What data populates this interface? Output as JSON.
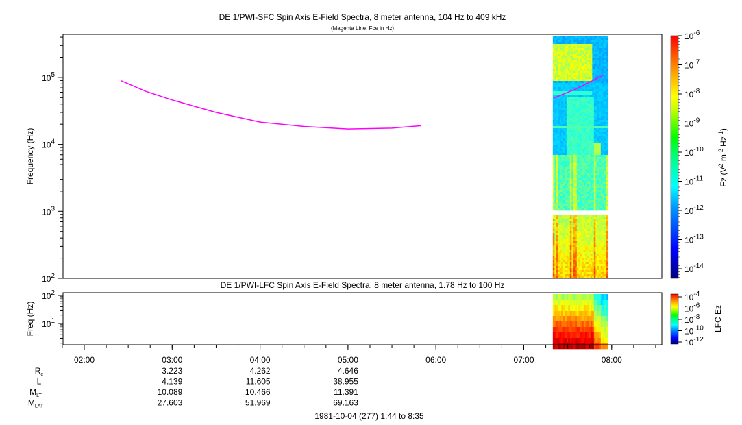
{
  "chart_data": [
    {
      "type": "heatmap",
      "title": "DE 1/PWI-SFC  Spin Axis E-Field Spectra, 8 meter antenna, 104 Hz to 409 kHz",
      "subtitle": "(Magenta Line: Fce in Hz)",
      "ylabel": "Frequency (Hz)",
      "yscale": "log",
      "ylim": [
        100,
        409000
      ],
      "yticks": [
        {
          "base": "10",
          "exp": "2"
        },
        {
          "base": "10",
          "exp": "3"
        },
        {
          "base": "10",
          "exp": "4"
        },
        {
          "base": "10",
          "exp": "5"
        }
      ],
      "xlim_hours": [
        1.733,
        8.583
      ],
      "data_coverage_hours": [
        7.33,
        7.95
      ],
      "data_gap_hz": [
        880,
        1050
      ],
      "fce_line": {
        "name": "Fce",
        "color": "#ff00ff",
        "segments": [
          [
            [
              2.42,
              89000
            ],
            [
              2.7,
              62000
            ],
            [
              3.0,
              46000
            ],
            [
              3.5,
              30000
            ],
            [
              4.0,
              21500
            ],
            [
              4.5,
              18500
            ],
            [
              5.0,
              17000
            ],
            [
              5.5,
              17500
            ],
            [
              5.83,
              19000
            ]
          ],
          [
            [
              7.34,
              49000
            ],
            [
              7.6,
              68000
            ],
            [
              7.9,
              107000
            ]
          ]
        ]
      },
      "colorbar": {
        "label_parts": [
          "Ez (V",
          "2",
          " m",
          "-2",
          " Hz",
          "-1",
          ")"
        ],
        "ticks": [
          {
            "base": "10",
            "exp": "-6"
          },
          {
            "base": "10",
            "exp": "-7"
          },
          {
            "base": "10",
            "exp": "-8"
          },
          {
            "base": "10",
            "exp": "-9"
          },
          {
            "base": "10",
            "exp": "-10"
          },
          {
            "base": "10",
            "exp": "-11"
          },
          {
            "base": "10",
            "exp": "-12"
          },
          {
            "base": "10",
            "exp": "-13"
          },
          {
            "base": "10",
            "exp": "-14"
          }
        ]
      }
    },
    {
      "type": "heatmap",
      "title": "DE 1/PWI-LFC  Spin Axis E-Field Spectra, 8 meter antenna, 1.78 Hz to 100 Hz",
      "ylabel": "Freq (Hz)",
      "yscale": "log",
      "ylim": [
        1.78,
        100
      ],
      "yticks": [
        {
          "base": "10",
          "exp": "1"
        },
        {
          "base": "10",
          "exp": "2"
        }
      ],
      "data_coverage_hours": [
        7.33,
        7.95
      ],
      "colorbar": {
        "label": "LFC Ez",
        "ticks": [
          {
            "base": "10",
            "exp": "-4"
          },
          {
            "base": "10",
            "exp": "-6"
          },
          {
            "base": "10",
            "exp": "-8"
          },
          {
            "base": "10",
            "exp": "-10"
          },
          {
            "base": "10",
            "exp": "-12"
          }
        ]
      }
    }
  ],
  "xaxis": {
    "ticks": [
      "02:00",
      "03:00",
      "04:00",
      "05:00",
      "06:00",
      "07:00",
      "08:00"
    ],
    "tick_hours": [
      2,
      3,
      4,
      5,
      6,
      7,
      8
    ]
  },
  "ephemeris": {
    "rows": [
      {
        "label": "R",
        "sub": "e",
        "values": [
          "3.223",
          "4.262",
          "4.646"
        ]
      },
      {
        "label": "L",
        "sub": "",
        "values": [
          "4.139",
          "11.605",
          "38.955"
        ]
      },
      {
        "label": "M",
        "sub": "LT",
        "values": [
          "10.089",
          "10.466",
          "11.391"
        ]
      },
      {
        "label": "M",
        "sub": "LAT",
        "values": [
          "27.603",
          "51.969",
          "69.163"
        ]
      }
    ]
  },
  "footer": "1981-10-04 (277) 1:44 to 8:35"
}
